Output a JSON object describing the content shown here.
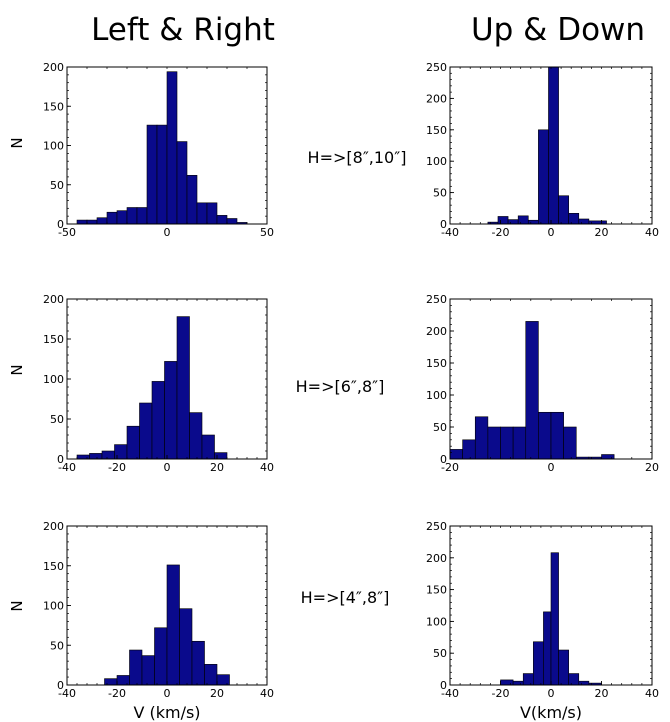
{
  "titles": {
    "left": "Left & Right",
    "right": "Up & Down"
  },
  "row_labels": [
    "H=>[8″,10″]",
    "H=>[6″,8″]",
    "H=>[4″,8″]"
  ],
  "ylabels": [
    "N",
    "N",
    "N"
  ],
  "xlabels": {
    "left": "V (km/s)",
    "right": "V(km/s)"
  },
  "bar_color": "#0a0a8c",
  "chart_data": [
    {
      "type": "bar",
      "title": "",
      "xlabel": "",
      "ylabel": "N",
      "xlim": [
        -50,
        50
      ],
      "ylim": [
        0,
        200
      ],
      "xticks": [
        -50,
        0,
        50
      ],
      "yticks": [
        0,
        50,
        100,
        150,
        200
      ],
      "grid": false,
      "bins": [
        {
          "x0": -45,
          "x1": -40,
          "y": 5
        },
        {
          "x0": -40,
          "x1": -35,
          "y": 5
        },
        {
          "x0": -35,
          "x1": -30,
          "y": 8
        },
        {
          "x0": -30,
          "x1": -25,
          "y": 15
        },
        {
          "x0": -25,
          "x1": -20,
          "y": 17
        },
        {
          "x0": -20,
          "x1": -15,
          "y": 21
        },
        {
          "x0": -15,
          "x1": -10,
          "y": 21
        },
        {
          "x0": -10,
          "x1": -5,
          "y": 126
        },
        {
          "x0": -5,
          "x1": 0,
          "y": 126
        },
        {
          "x0": 0,
          "x1": 5,
          "y": 194
        },
        {
          "x0": 5,
          "x1": 10,
          "y": 105
        },
        {
          "x0": 10,
          "x1": 15,
          "y": 62
        },
        {
          "x0": 15,
          "x1": 20,
          "y": 27
        },
        {
          "x0": 20,
          "x1": 25,
          "y": 27
        },
        {
          "x0": 25,
          "x1": 30,
          "y": 11
        },
        {
          "x0": 30,
          "x1": 35,
          "y": 7
        },
        {
          "x0": 35,
          "x1": 40,
          "y": 2
        }
      ]
    },
    {
      "type": "bar",
      "title": "",
      "xlabel": "",
      "ylabel": "",
      "xlim": [
        -40,
        40
      ],
      "ylim": [
        0,
        250
      ],
      "xticks": [
        -40,
        -20,
        0,
        20,
        40
      ],
      "yticks": [
        0,
        50,
        100,
        150,
        200,
        250
      ],
      "grid": false,
      "bins": [
        {
          "x0": -25,
          "x1": -21,
          "y": 3
        },
        {
          "x0": -21,
          "x1": -17,
          "y": 12
        },
        {
          "x0": -17,
          "x1": -13,
          "y": 7
        },
        {
          "x0": -13,
          "x1": -9,
          "y": 13
        },
        {
          "x0": -9,
          "x1": -5,
          "y": 6
        },
        {
          "x0": -5,
          "x1": -1,
          "y": 150
        },
        {
          "x0": -1,
          "x1": 3,
          "y": 250
        },
        {
          "x0": 3,
          "x1": 7,
          "y": 45
        },
        {
          "x0": 7,
          "x1": 11,
          "y": 17
        },
        {
          "x0": 11,
          "x1": 15,
          "y": 8
        },
        {
          "x0": 15,
          "x1": 22,
          "y": 5
        }
      ]
    },
    {
      "type": "bar",
      "title": "",
      "xlabel": "",
      "ylabel": "N",
      "xlim": [
        -40,
        40
      ],
      "ylim": [
        0,
        200
      ],
      "xticks": [
        -40,
        -20,
        0,
        20,
        40
      ],
      "yticks": [
        0,
        50,
        100,
        150,
        200
      ],
      "grid": false,
      "bins": [
        {
          "x0": -36,
          "x1": -31,
          "y": 5
        },
        {
          "x0": -31,
          "x1": -26,
          "y": 7
        },
        {
          "x0": -26,
          "x1": -21,
          "y": 10
        },
        {
          "x0": -21,
          "x1": -16,
          "y": 18
        },
        {
          "x0": -16,
          "x1": -11,
          "y": 41
        },
        {
          "x0": -11,
          "x1": -6,
          "y": 70
        },
        {
          "x0": -6,
          "x1": -1,
          "y": 97
        },
        {
          "x0": -1,
          "x1": 4,
          "y": 122
        },
        {
          "x0": 4,
          "x1": 9,
          "y": 178
        },
        {
          "x0": 9,
          "x1": 14,
          "y": 58
        },
        {
          "x0": 14,
          "x1": 19,
          "y": 30
        },
        {
          "x0": 19,
          "x1": 24,
          "y": 8
        }
      ]
    },
    {
      "type": "bar",
      "title": "",
      "xlabel": "",
      "ylabel": "",
      "xlim": [
        -20,
        20
      ],
      "ylim": [
        0,
        250
      ],
      "xticks": [
        -20,
        0,
        20
      ],
      "yticks": [
        0,
        50,
        100,
        150,
        200,
        250
      ],
      "grid": false,
      "bins": [
        {
          "x0": -20,
          "x1": -17.5,
          "y": 15
        },
        {
          "x0": -17.5,
          "x1": -15,
          "y": 30
        },
        {
          "x0": -15,
          "x1": -12.5,
          "y": 66
        },
        {
          "x0": -12.5,
          "x1": -10,
          "y": 50
        },
        {
          "x0": -10,
          "x1": -7.5,
          "y": 50
        },
        {
          "x0": -7.5,
          "x1": -5,
          "y": 50
        },
        {
          "x0": -5,
          "x1": -2.5,
          "y": 215
        },
        {
          "x0": -2.5,
          "x1": 0,
          "y": 73
        },
        {
          "x0": 0,
          "x1": 2.5,
          "y": 73
        },
        {
          "x0": 2.5,
          "x1": 5,
          "y": 50
        },
        {
          "x0": 5,
          "x1": 7.5,
          "y": 3
        },
        {
          "x0": 7.5,
          "x1": 10,
          "y": 3
        },
        {
          "x0": 10,
          "x1": 12.5,
          "y": 7
        }
      ]
    },
    {
      "type": "bar",
      "title": "",
      "xlabel": "V (km/s)",
      "ylabel": "N",
      "xlim": [
        -40,
        40
      ],
      "ylim": [
        0,
        200
      ],
      "xticks": [
        -40,
        -20,
        0,
        20,
        40
      ],
      "yticks": [
        0,
        50,
        100,
        150,
        200
      ],
      "grid": false,
      "bins": [
        {
          "x0": -25,
          "x1": -20,
          "y": 8
        },
        {
          "x0": -20,
          "x1": -15,
          "y": 12
        },
        {
          "x0": -15,
          "x1": -10,
          "y": 44
        },
        {
          "x0": -10,
          "x1": -5,
          "y": 37
        },
        {
          "x0": -5,
          "x1": 0,
          "y": 72
        },
        {
          "x0": 0,
          "x1": 5,
          "y": 151
        },
        {
          "x0": 5,
          "x1": 10,
          "y": 96
        },
        {
          "x0": 10,
          "x1": 15,
          "y": 55
        },
        {
          "x0": 15,
          "x1": 20,
          "y": 26
        },
        {
          "x0": 20,
          "x1": 25,
          "y": 13
        }
      ]
    },
    {
      "type": "bar",
      "title": "",
      "xlabel": "V(km/s)",
      "ylabel": "",
      "xlim": [
        -40,
        40
      ],
      "ylim": [
        0,
        250
      ],
      "xticks": [
        -40,
        -20,
        0,
        20,
        40
      ],
      "yticks": [
        0,
        50,
        100,
        150,
        200,
        250
      ],
      "grid": false,
      "bins": [
        {
          "x0": -20,
          "x1": -15,
          "y": 8
        },
        {
          "x0": -15,
          "x1": -11,
          "y": 6
        },
        {
          "x0": -11,
          "x1": -7,
          "y": 18
        },
        {
          "x0": -7,
          "x1": -3,
          "y": 68
        },
        {
          "x0": -3,
          "x1": 0,
          "y": 115
        },
        {
          "x0": 0,
          "x1": 3,
          "y": 208
        },
        {
          "x0": 3,
          "x1": 7,
          "y": 55
        },
        {
          "x0": 7,
          "x1": 11,
          "y": 18
        },
        {
          "x0": 11,
          "x1": 15,
          "y": 6
        },
        {
          "x0": 15,
          "x1": 20,
          "y": 3
        }
      ]
    }
  ]
}
